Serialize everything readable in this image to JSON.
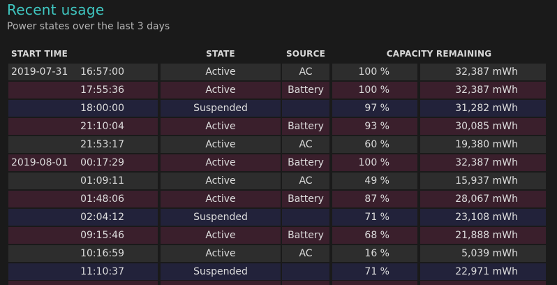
{
  "header": {
    "title": "Recent usage",
    "subtitle": "Power states over the last 3 days"
  },
  "table": {
    "columns": {
      "start_time": "START TIME",
      "state": "STATE",
      "source": "SOURCE",
      "capacity": "CAPACITY REMAINING"
    },
    "rows": [
      {
        "date": "2019-07-31",
        "time": "16:57:00",
        "state": "Active",
        "source": "AC",
        "percent": "100 %",
        "mwh": "32,387 mWh"
      },
      {
        "date": "",
        "time": "17:55:36",
        "state": "Active",
        "source": "Battery",
        "percent": "100 %",
        "mwh": "32,387 mWh"
      },
      {
        "date": "",
        "time": "18:00:00",
        "state": "Suspended",
        "source": "",
        "percent": "97 %",
        "mwh": "31,282 mWh"
      },
      {
        "date": "",
        "time": "21:10:04",
        "state": "Active",
        "source": "Battery",
        "percent": "93 %",
        "mwh": "30,085 mWh"
      },
      {
        "date": "",
        "time": "21:53:17",
        "state": "Active",
        "source": "AC",
        "percent": "60 %",
        "mwh": "19,380 mWh"
      },
      {
        "date": "2019-08-01",
        "time": "00:17:29",
        "state": "Active",
        "source": "Battery",
        "percent": "100 %",
        "mwh": "32,387 mWh"
      },
      {
        "date": "",
        "time": "01:09:11",
        "state": "Active",
        "source": "AC",
        "percent": "49 %",
        "mwh": "15,937 mWh"
      },
      {
        "date": "",
        "time": "01:48:06",
        "state": "Active",
        "source": "Battery",
        "percent": "87 %",
        "mwh": "28,067 mWh"
      },
      {
        "date": "",
        "time": "02:04:12",
        "state": "Suspended",
        "source": "",
        "percent": "71 %",
        "mwh": "23,108 mWh"
      },
      {
        "date": "",
        "time": "09:15:46",
        "state": "Active",
        "source": "Battery",
        "percent": "68 %",
        "mwh": "21,888 mWh"
      },
      {
        "date": "",
        "time": "10:16:59",
        "state": "Active",
        "source": "AC",
        "percent": "16 %",
        "mwh": "5,039 mWh"
      },
      {
        "date": "",
        "time": "11:10:37",
        "state": "Suspended",
        "source": "",
        "percent": "71 %",
        "mwh": "22,971 mWh"
      }
    ]
  },
  "colors": {
    "title": "#3fc6c0",
    "ac_row": "#2d2d2d",
    "battery_row": "#3a1f2c",
    "suspended_row": "#22223a"
  }
}
